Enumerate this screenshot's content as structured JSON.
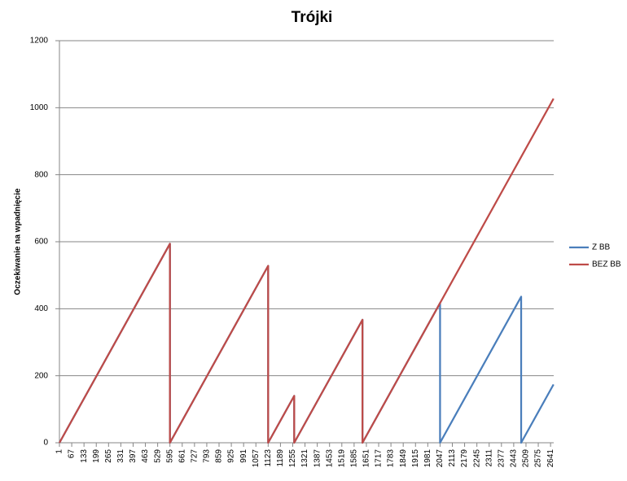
{
  "chart_data": {
    "type": "line",
    "title": "Trójki",
    "y_label": "Oczekiwanie na wpadnięcie",
    "x": [
      1,
      595,
      595,
      1123,
      1123,
      1263,
      1263,
      1630,
      1630,
      2047,
      2047,
      2483,
      2483,
      2657
    ],
    "xlim": [
      1,
      2658
    ],
    "xticks": [
      1,
      67,
      133,
      199,
      265,
      331,
      397,
      463,
      529,
      595,
      661,
      727,
      793,
      859,
      925,
      991,
      1057,
      1123,
      1189,
      1255,
      1321,
      1387,
      1453,
      1519,
      1585,
      1651,
      1717,
      1783,
      1849,
      1915,
      1981,
      2047,
      2113,
      2179,
      2245,
      2311,
      2377,
      2443,
      2509,
      2575,
      2641
    ],
    "ylim": [
      0,
      1200
    ],
    "yticks": [
      0,
      200,
      400,
      600,
      800,
      1000,
      1200
    ],
    "grid": true,
    "legend": "right",
    "series": [
      {
        "name": "Z BB",
        "color": "#4a7ebb",
        "values": [
          0,
          594,
          0,
          528,
          0,
          140,
          0,
          367,
          0,
          417,
          0,
          436,
          0,
          174
        ]
      },
      {
        "name": "BEZ BB",
        "color": "#be4b48",
        "values": [
          0,
          594,
          0,
          528,
          0,
          140,
          0,
          367,
          0,
          417,
          417,
          853,
          853,
          1027
        ]
      }
    ]
  }
}
